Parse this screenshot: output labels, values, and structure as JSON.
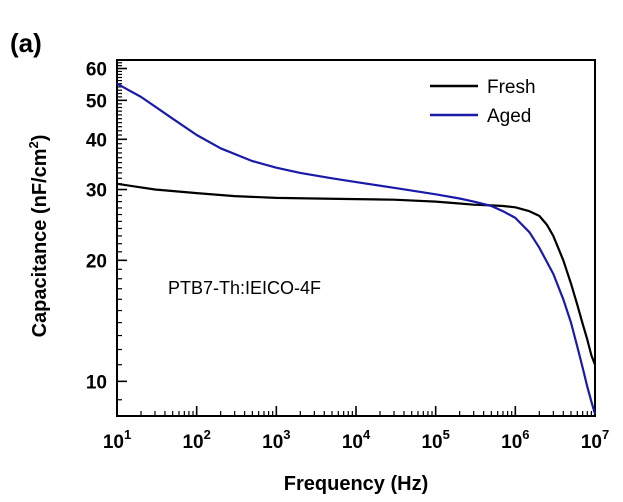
{
  "chart_data": {
    "type": "line",
    "panel_label": "(a)",
    "title": "",
    "xlabel": "Frequency (Hz)",
    "ylabel_main": "Capacitance (nF/cm",
    "ylabel_sup": "2",
    "ylabel_end": ")",
    "x_scale": "log",
    "y_scale": "log",
    "xlim": [
      10,
      10000000
    ],
    "ylim": [
      8.2,
      63
    ],
    "x_ticks": [
      {
        "value": 10,
        "base": "10",
        "exp": "1"
      },
      {
        "value": 100,
        "base": "10",
        "exp": "2"
      },
      {
        "value": 1000,
        "base": "10",
        "exp": "3"
      },
      {
        "value": 10000,
        "base": "10",
        "exp": "4"
      },
      {
        "value": 100000,
        "base": "10",
        "exp": "5"
      },
      {
        "value": 1000000,
        "base": "10",
        "exp": "6"
      },
      {
        "value": 10000000,
        "base": "10",
        "exp": "7"
      }
    ],
    "y_ticks": [
      {
        "value": 10,
        "label": "10"
      },
      {
        "value": 20,
        "label": "20"
      },
      {
        "value": 30,
        "label": "30"
      },
      {
        "value": 40,
        "label": "40"
      },
      {
        "value": 50,
        "label": "50"
      },
      {
        "value": 60,
        "label": "60"
      }
    ],
    "annotation": "PTB7-Th:IEICO-4F",
    "legend_position": "top-right",
    "series": [
      {
        "name": "Fresh",
        "color": "#000000",
        "x": [
          10,
          30,
          100,
          300,
          1000,
          3000,
          10000,
          30000,
          100000,
          200000,
          300000,
          500000,
          700000,
          1000000,
          1500000,
          2000000,
          2500000,
          3000000,
          4000000,
          5000000,
          6000000,
          7000000,
          8000000,
          9000000,
          10000000
        ],
        "y": [
          31.0,
          30.0,
          29.4,
          28.9,
          28.6,
          28.5,
          28.4,
          28.3,
          28.0,
          27.7,
          27.5,
          27.4,
          27.3,
          27.1,
          26.5,
          25.8,
          24.5,
          23.0,
          20.0,
          17.5,
          15.5,
          13.9,
          12.7,
          11.6,
          11.0
        ]
      },
      {
        "name": "Aged",
        "color": "#1a1aa8",
        "x": [
          10,
          20,
          50,
          100,
          200,
          500,
          1000,
          2000,
          5000,
          10000,
          30000,
          100000,
          200000,
          300000,
          500000,
          700000,
          1000000,
          1500000,
          2000000,
          3000000,
          4000000,
          5000000,
          6000000,
          7000000,
          8000000,
          9000000,
          10000000
        ],
        "y": [
          55.0,
          51.0,
          45.0,
          41.0,
          38.0,
          35.3,
          34.0,
          33.0,
          32.0,
          31.3,
          30.3,
          29.2,
          28.5,
          28.0,
          27.3,
          26.5,
          25.5,
          23.5,
          21.5,
          18.5,
          16.0,
          14.0,
          12.2,
          10.8,
          9.7,
          8.9,
          8.3
        ]
      }
    ]
  }
}
